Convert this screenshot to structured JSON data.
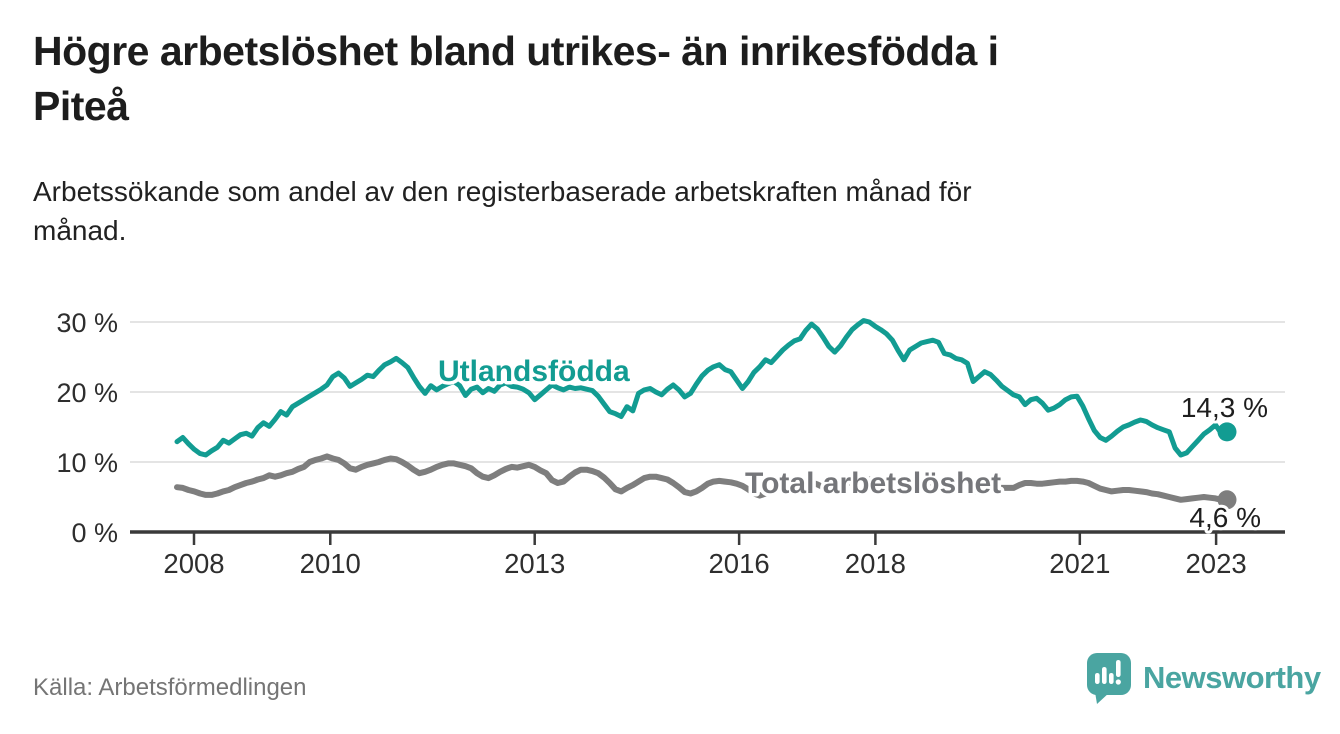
{
  "header": {
    "title_line1": "Högre arbetslöshet bland utrikes- än inrikesfödda i",
    "title_line2": "Piteå",
    "subtitle_line1": "Arbetssökande som andel av den registerbaserade arbetskraften månad för",
    "subtitle_line2": "månad."
  },
  "footer": {
    "source": "Källa: Arbetsförmedlingen",
    "brand": "Newsworthy"
  },
  "colors": {
    "teal": "#129c92",
    "gray_line": "#7e7e7e",
    "gray_label": "#75767a",
    "axis": "#3a3a3a",
    "grid": "#dcdcdc",
    "tick_text": "#2e2e2e",
    "end_label_text": "#1e1e1e",
    "logo_teal": "#4aa5a1"
  },
  "chart_data": {
    "type": "line",
    "x_start": "2008-01",
    "x_interval": "month",
    "x_ticks": [
      2008,
      2010,
      2013,
      2016,
      2018,
      2021,
      2023
    ],
    "y_ticks": [
      0,
      10,
      20,
      30
    ],
    "y_unit": "%",
    "ylim": [
      0,
      32
    ],
    "grid": true,
    "legend_position": "inline-labels",
    "series": [
      {
        "name": "Utlandsfödda",
        "end_label": "14,3 %",
        "end_value": 14.3,
        "color": "#129c92",
        "values": [
          12.9,
          13.5,
          12.6,
          11.8,
          11.2,
          11.0,
          11.6,
          12.1,
          13.1,
          12.7,
          13.3,
          13.9,
          14.1,
          13.7,
          14.9,
          15.6,
          15.1,
          16.1,
          17.2,
          16.7,
          17.9,
          18.4,
          18.9,
          19.4,
          19.9,
          20.4,
          21.0,
          22.2,
          22.7,
          22.0,
          20.8,
          21.3,
          21.8,
          22.4,
          22.2,
          23.1,
          23.9,
          24.3,
          24.8,
          24.2,
          23.5,
          22.1,
          20.8,
          19.8,
          20.9,
          20.3,
          20.8,
          21.2,
          21.5,
          20.9,
          19.5,
          20.4,
          20.7,
          19.9,
          20.5,
          20.1,
          21.0,
          21.3,
          20.8,
          20.7,
          20.4,
          19.9,
          18.9,
          19.6,
          20.3,
          21.0,
          20.6,
          20.3,
          20.7,
          20.5,
          20.6,
          20.4,
          20.2,
          19.4,
          18.3,
          17.2,
          16.9,
          16.5,
          17.9,
          17.3,
          19.8,
          20.3,
          20.5,
          20.0,
          19.6,
          20.4,
          21.0,
          20.3,
          19.3,
          19.8,
          21.1,
          22.3,
          23.1,
          23.6,
          23.9,
          23.2,
          22.9,
          21.7,
          20.5,
          21.5,
          22.8,
          23.6,
          24.6,
          24.2,
          25.1,
          26.0,
          26.7,
          27.3,
          27.6,
          28.8,
          29.7,
          29.0,
          27.8,
          26.5,
          25.7,
          26.6,
          27.8,
          28.9,
          29.6,
          30.2,
          30.0,
          29.4,
          28.9,
          28.3,
          27.4,
          25.9,
          24.6,
          26.0,
          26.5,
          27.0,
          27.2,
          27.4,
          27.1,
          25.5,
          25.3,
          24.8,
          24.6,
          24.1,
          21.5,
          22.2,
          22.9,
          22.5,
          21.7,
          20.8,
          20.2,
          19.6,
          19.3,
          18.2,
          18.9,
          19.1,
          18.4,
          17.4,
          17.7,
          18.2,
          18.9,
          19.3,
          19.4,
          18.0,
          16.2,
          14.5,
          13.5,
          13.1,
          13.7,
          14.4,
          15.0,
          15.3,
          15.7,
          16.0,
          15.8,
          15.3,
          14.9,
          14.6,
          14.3,
          12.0,
          11.0,
          11.3,
          12.2,
          13.1,
          14.0,
          14.6,
          15.3,
          14.1,
          14.3
        ]
      },
      {
        "name": "Total arbetslöshet",
        "end_label": "4,6 %",
        "end_value": 4.6,
        "color": "#7e7e7e",
        "values": [
          6.4,
          6.3,
          6.0,
          5.8,
          5.5,
          5.3,
          5.3,
          5.5,
          5.8,
          6.0,
          6.4,
          6.7,
          7.0,
          7.2,
          7.5,
          7.7,
          8.1,
          7.9,
          8.1,
          8.4,
          8.6,
          9.0,
          9.3,
          10.0,
          10.3,
          10.5,
          10.8,
          10.5,
          10.3,
          9.8,
          9.1,
          8.9,
          9.3,
          9.6,
          9.8,
          10.0,
          10.3,
          10.5,
          10.4,
          10.0,
          9.5,
          8.9,
          8.4,
          8.6,
          8.9,
          9.3,
          9.6,
          9.8,
          9.8,
          9.6,
          9.4,
          9.1,
          8.4,
          7.9,
          7.7,
          8.1,
          8.6,
          9.0,
          9.3,
          9.2,
          9.4,
          9.6,
          9.3,
          8.8,
          8.4,
          7.4,
          7.0,
          7.2,
          7.9,
          8.5,
          8.9,
          8.9,
          8.7,
          8.4,
          7.8,
          7.0,
          6.1,
          5.8,
          6.3,
          6.7,
          7.2,
          7.7,
          7.9,
          7.9,
          7.7,
          7.5,
          7.0,
          6.4,
          5.7,
          5.5,
          5.8,
          6.3,
          6.9,
          7.2,
          7.3,
          7.2,
          7.1,
          6.9,
          6.6,
          6.1,
          5.5,
          5.2,
          5.5,
          6.0,
          6.5,
          6.8,
          7.0,
          7.1,
          7.2,
          7.3,
          7.1,
          6.8,
          6.4,
          6.0,
          6.2,
          6.5,
          6.9,
          7.2,
          7.4,
          7.5,
          7.5,
          7.4,
          7.2,
          6.9,
          6.5,
          6.1,
          6.0,
          6.3,
          6.6,
          6.9,
          7.0,
          7.1,
          7.0,
          6.9,
          6.7,
          6.4,
          6.1,
          5.8,
          5.7,
          5.9,
          6.1,
          6.3,
          6.3,
          6.3,
          6.3,
          6.3,
          6.7,
          7.0,
          7.0,
          6.9,
          6.9,
          7.0,
          7.1,
          7.2,
          7.2,
          7.3,
          7.3,
          7.2,
          7.0,
          6.6,
          6.2,
          6.0,
          5.8,
          5.9,
          6.0,
          6.0,
          5.9,
          5.8,
          5.7,
          5.5,
          5.4,
          5.2,
          5.0,
          4.8,
          4.6,
          4.7,
          4.8,
          4.9,
          5.0,
          4.9,
          4.8,
          4.6,
          4.6
        ]
      }
    ]
  }
}
